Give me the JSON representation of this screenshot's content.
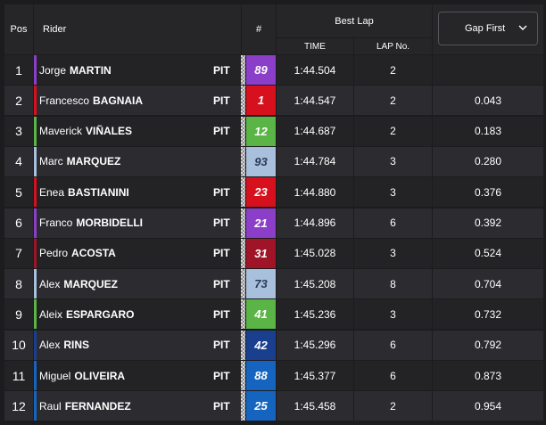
{
  "header": {
    "pos": "Pos",
    "rider": "Rider",
    "number": "#",
    "best_lap": "Best Lap",
    "time": "TIME",
    "lap_no": "LAP No.",
    "gap_select": "Gap First",
    "chevron_icon": "chevron-down-icon"
  },
  "rows": [
    {
      "pos": "1",
      "first": "Jorge",
      "last": "MARTIN",
      "pit": "PIT",
      "num": "89",
      "num_bg": "#8b3fc9",
      "num_fg": "#ffffff",
      "stripe": "#8b3fc9",
      "time": "1:44.504",
      "lap": "2",
      "gap": ""
    },
    {
      "pos": "2",
      "first": "Francesco",
      "last": "BAGNAIA",
      "pit": "PIT",
      "num": "1",
      "num_bg": "#d6101d",
      "num_fg": "#ffffff",
      "stripe": "#d6101d",
      "time": "1:44.547",
      "lap": "2",
      "gap": "0.043"
    },
    {
      "pos": "3",
      "first": "Maverick",
      "last": "VIÑALES",
      "pit": "PIT",
      "num": "12",
      "num_bg": "#5bb546",
      "num_fg": "#ffffff",
      "stripe": "#5bb546",
      "time": "1:44.687",
      "lap": "2",
      "gap": "0.183"
    },
    {
      "pos": "4",
      "first": "Marc",
      "last": "MARQUEZ",
      "pit": "",
      "num": "93",
      "num_bg": "#a9c0dc",
      "num_fg": "#2a3a55",
      "stripe": "#a9c0dc",
      "time": "1:44.784",
      "lap": "3",
      "gap": "0.280"
    },
    {
      "pos": "5",
      "first": "Enea",
      "last": "BASTIANINI",
      "pit": "PIT",
      "num": "23",
      "num_bg": "#d6101d",
      "num_fg": "#ffffff",
      "stripe": "#d6101d",
      "time": "1:44.880",
      "lap": "3",
      "gap": "0.376"
    },
    {
      "pos": "6",
      "first": "Franco",
      "last": "MORBIDELLI",
      "pit": "PIT",
      "num": "21",
      "num_bg": "#8b3fc9",
      "num_fg": "#ffffff",
      "stripe": "#8b3fc9",
      "time": "1:44.896",
      "lap": "6",
      "gap": "0.392"
    },
    {
      "pos": "7",
      "first": "Pedro",
      "last": "ACOSTA",
      "pit": "PIT",
      "num": "31",
      "num_bg": "#a01428",
      "num_fg": "#ffffff",
      "stripe": "#a01428",
      "time": "1:45.028",
      "lap": "3",
      "gap": "0.524"
    },
    {
      "pos": "8",
      "first": "Alex",
      "last": "MARQUEZ",
      "pit": "PIT",
      "num": "73",
      "num_bg": "#a9c0dc",
      "num_fg": "#2a3a55",
      "stripe": "#a9c0dc",
      "time": "1:45.208",
      "lap": "8",
      "gap": "0.704"
    },
    {
      "pos": "9",
      "first": "Aleix",
      "last": "ESPARGARO",
      "pit": "PIT",
      "num": "41",
      "num_bg": "#5bb546",
      "num_fg": "#ffffff",
      "stripe": "#5bb546",
      "time": "1:45.236",
      "lap": "3",
      "gap": "0.732"
    },
    {
      "pos": "10",
      "first": "Alex",
      "last": "RINS",
      "pit": "PIT",
      "num": "42",
      "num_bg": "#1b3f8f",
      "num_fg": "#ffffff",
      "stripe": "#1b3f8f",
      "time": "1:45.296",
      "lap": "6",
      "gap": "0.792"
    },
    {
      "pos": "11",
      "first": "Miguel",
      "last": "OLIVEIRA",
      "pit": "PIT",
      "num": "88",
      "num_bg": "#1565c0",
      "num_fg": "#ffffff",
      "stripe": "#1565c0",
      "time": "1:45.377",
      "lap": "6",
      "gap": "0.873"
    },
    {
      "pos": "12",
      "first": "Raul",
      "last": "FERNANDEZ",
      "pit": "PIT",
      "num": "25",
      "num_bg": "#1565c0",
      "num_fg": "#ffffff",
      "stripe": "#1565c0",
      "time": "1:45.458",
      "lap": "2",
      "gap": "0.954"
    }
  ]
}
